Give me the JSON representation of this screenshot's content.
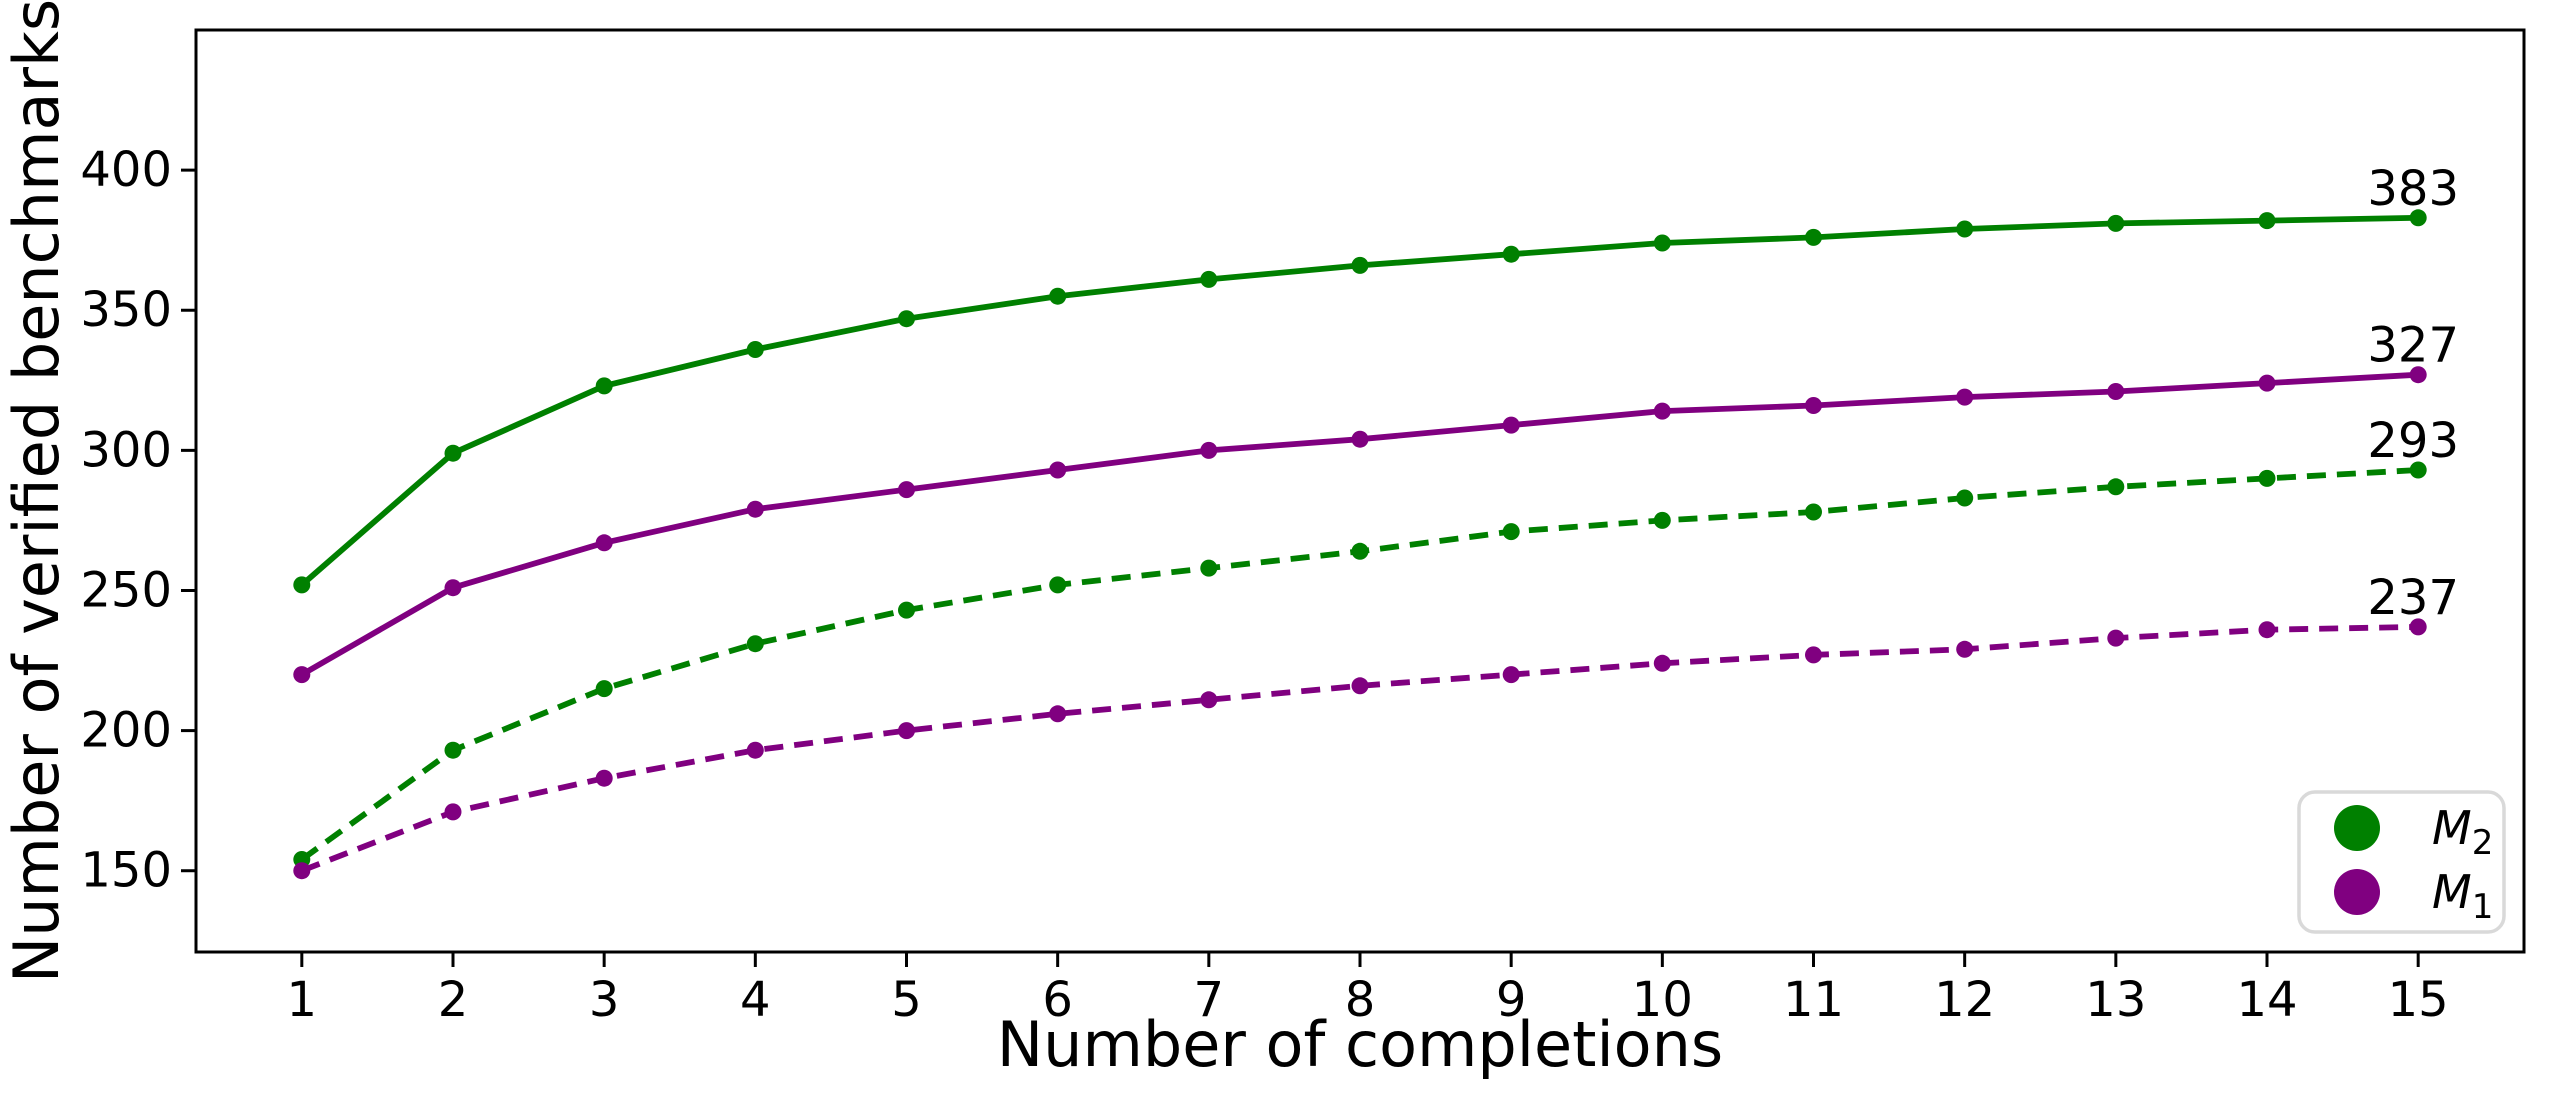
{
  "chart_data": {
    "type": "line",
    "title": "",
    "xlabel": "Number of completions",
    "ylabel": "Number of verified benchmarks",
    "x": [
      1,
      2,
      3,
      4,
      5,
      6,
      7,
      8,
      9,
      10,
      11,
      12,
      13,
      14,
      15
    ],
    "x_ticks": [
      1,
      2,
      3,
      4,
      5,
      6,
      7,
      8,
      9,
      10,
      11,
      12,
      13,
      14,
      15
    ],
    "y_ticks": [
      150,
      200,
      250,
      300,
      350,
      400
    ],
    "xlim": [
      0.3,
      15.7
    ],
    "ylim": [
      121,
      450
    ],
    "grid": false,
    "marker": "circle",
    "legend_position": "lower right",
    "series": [
      {
        "name": "M2-solid",
        "legend_group": "M2",
        "color": "#008000",
        "dash": "solid",
        "values": [
          252,
          299,
          323,
          336,
          347,
          355,
          361,
          366,
          370,
          374,
          376,
          379,
          381,
          382,
          383
        ],
        "end_label": "383"
      },
      {
        "name": "M1-solid",
        "legend_group": "M1",
        "color": "#800080",
        "dash": "solid",
        "values": [
          220,
          251,
          267,
          279,
          286,
          293,
          300,
          304,
          309,
          314,
          316,
          319,
          321,
          324,
          327
        ],
        "end_label": "327"
      },
      {
        "name": "M2-dashed",
        "legend_group": "M2",
        "color": "#008000",
        "dash": "dashed",
        "values": [
          154,
          193,
          215,
          231,
          243,
          252,
          258,
          264,
          271,
          275,
          278,
          283,
          287,
          290,
          293
        ],
        "end_label": "293"
      },
      {
        "name": "M1-dashed",
        "legend_group": "M1",
        "color": "#800080",
        "dash": "dashed",
        "values": [
          150,
          171,
          183,
          193,
          200,
          206,
          211,
          216,
          220,
          224,
          227,
          229,
          233,
          236,
          237
        ],
        "end_label": "237"
      }
    ],
    "legend": [
      {
        "main": "M",
        "sub": "2",
        "color": "#008000"
      },
      {
        "main": "M",
        "sub": "1",
        "color": "#800080"
      }
    ]
  },
  "colors": {
    "background": "#ffffff",
    "axis": "#000000",
    "text": "#000000",
    "legend_border": "#d9d9d9",
    "green": "#008000",
    "purple": "#800080"
  }
}
